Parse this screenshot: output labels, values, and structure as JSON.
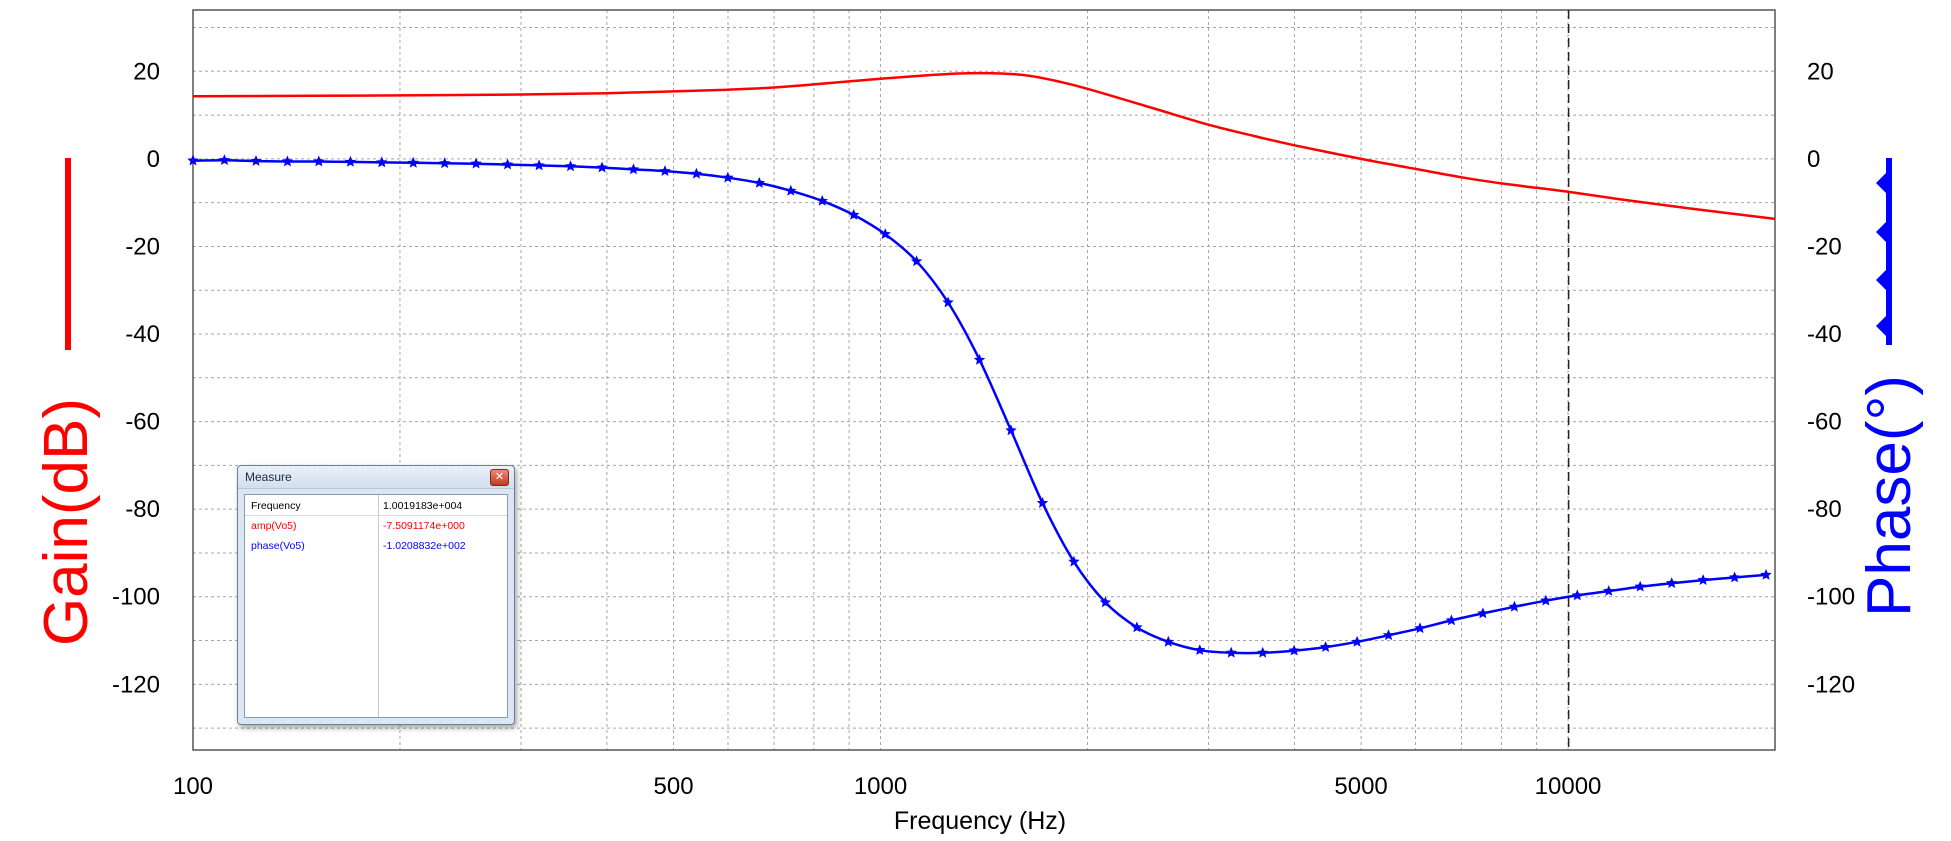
{
  "chart_data": {
    "type": "line",
    "xlabel": "Frequency (Hz)",
    "ylabel_left": "Gain(dB)",
    "ylabel_right": "Phase(°)",
    "x_scale": "log",
    "xlim": [
      100,
      20000
    ],
    "ylim": [
      -135,
      34
    ],
    "x_tick_labels": [
      "100",
      "500",
      "1000",
      "5000",
      "10000"
    ],
    "x_ticks": [
      100,
      500,
      1000,
      5000,
      10000
    ],
    "y_ticks": [
      20,
      0,
      -20,
      -40,
      -60,
      -80,
      -100,
      -120
    ],
    "y_tick_labels": [
      "20",
      "0",
      "-20",
      "-40",
      "-60",
      "-80",
      "-100",
      "-120"
    ],
    "grid": true,
    "cursor_x": 10019.183,
    "series": [
      {
        "color": "#ff0000",
        "axis": "left",
        "markers": false,
        "x": [
          100,
          150,
          200,
          300,
          400,
          500,
          600,
          700,
          800,
          900,
          1000,
          1100,
          1200,
          1300,
          1400,
          1500,
          1600,
          1700,
          1800,
          2000,
          2500,
          3000,
          3500,
          4000,
          5000,
          6000,
          7000,
          8000,
          9000,
          10000,
          12000,
          15000,
          20000
        ],
        "values": [
          14.3,
          14.4,
          14.5,
          14.7,
          15.0,
          15.4,
          15.8,
          16.3,
          17.0,
          17.7,
          18.3,
          18.8,
          19.2,
          19.5,
          19.6,
          19.5,
          19.2,
          18.6,
          17.8,
          16.0,
          11.5,
          7.8,
          5.2,
          3.1,
          0.0,
          -2.3,
          -4.2,
          -5.6,
          -6.6,
          -7.5,
          -9.3,
          -11.3,
          -13.7
        ]
      },
      {
        "color": "#0000ff",
        "axis": "right",
        "markers": true,
        "x": [
          100,
          111.1,
          123.5,
          137.2,
          152.4,
          169.4,
          188.2,
          209.1,
          232.3,
          258.1,
          286.8,
          318.7,
          354.1,
          393.5,
          437.2,
          485.8,
          539.8,
          599.7,
          666.4,
          740.4,
          822.7,
          914.1,
          1015.7,
          1128.6,
          1254.0,
          1393.3,
          1548.1,
          1720.1,
          1911.3,
          2123.6,
          2359.6,
          2621.8,
          2913.1,
          3236.8,
          3596.4,
          3996.0,
          4440.0,
          4933.4,
          5481.6,
          6090.6,
          6767.4,
          7519.3,
          8354.8,
          9283.1,
          10314.6,
          11460.7,
          12734.0,
          14149.0,
          15721.0,
          17467.8,
          19408.6
        ],
        "values": [
          -0.4,
          -0.3,
          -0.5,
          -0.6,
          -0.6,
          -0.7,
          -0.8,
          -0.9,
          -1.0,
          -1.1,
          -1.3,
          -1.5,
          -1.7,
          -2.0,
          -2.4,
          -2.8,
          -3.4,
          -4.3,
          -5.5,
          -7.3,
          -9.6,
          -12.8,
          -17.2,
          -23.4,
          -32.8,
          -45.9,
          -62.0,
          -78.6,
          -92.0,
          -101.3,
          -107.0,
          -110.3,
          -112.2,
          -112.8,
          -112.8,
          -112.3,
          -111.5,
          -110.3,
          -108.8,
          -107.2,
          -105.4,
          -103.8,
          -102.3,
          -100.9,
          -99.7,
          -98.7,
          -97.7,
          -96.9,
          -96.2,
          -95.6,
          -95.0
        ]
      }
    ]
  },
  "measure": {
    "title": "Measure",
    "rows": [
      {
        "label": "Frequency",
        "value": "1.0019183e+004",
        "color": "#000000"
      },
      {
        "label": "amp(Vo5)",
        "value": "-7.5091174e+000",
        "color": "#ff0000"
      },
      {
        "label": "phase(Vo5)",
        "value": "-1.0208832e+002",
        "color": "#0000ff"
      }
    ]
  }
}
